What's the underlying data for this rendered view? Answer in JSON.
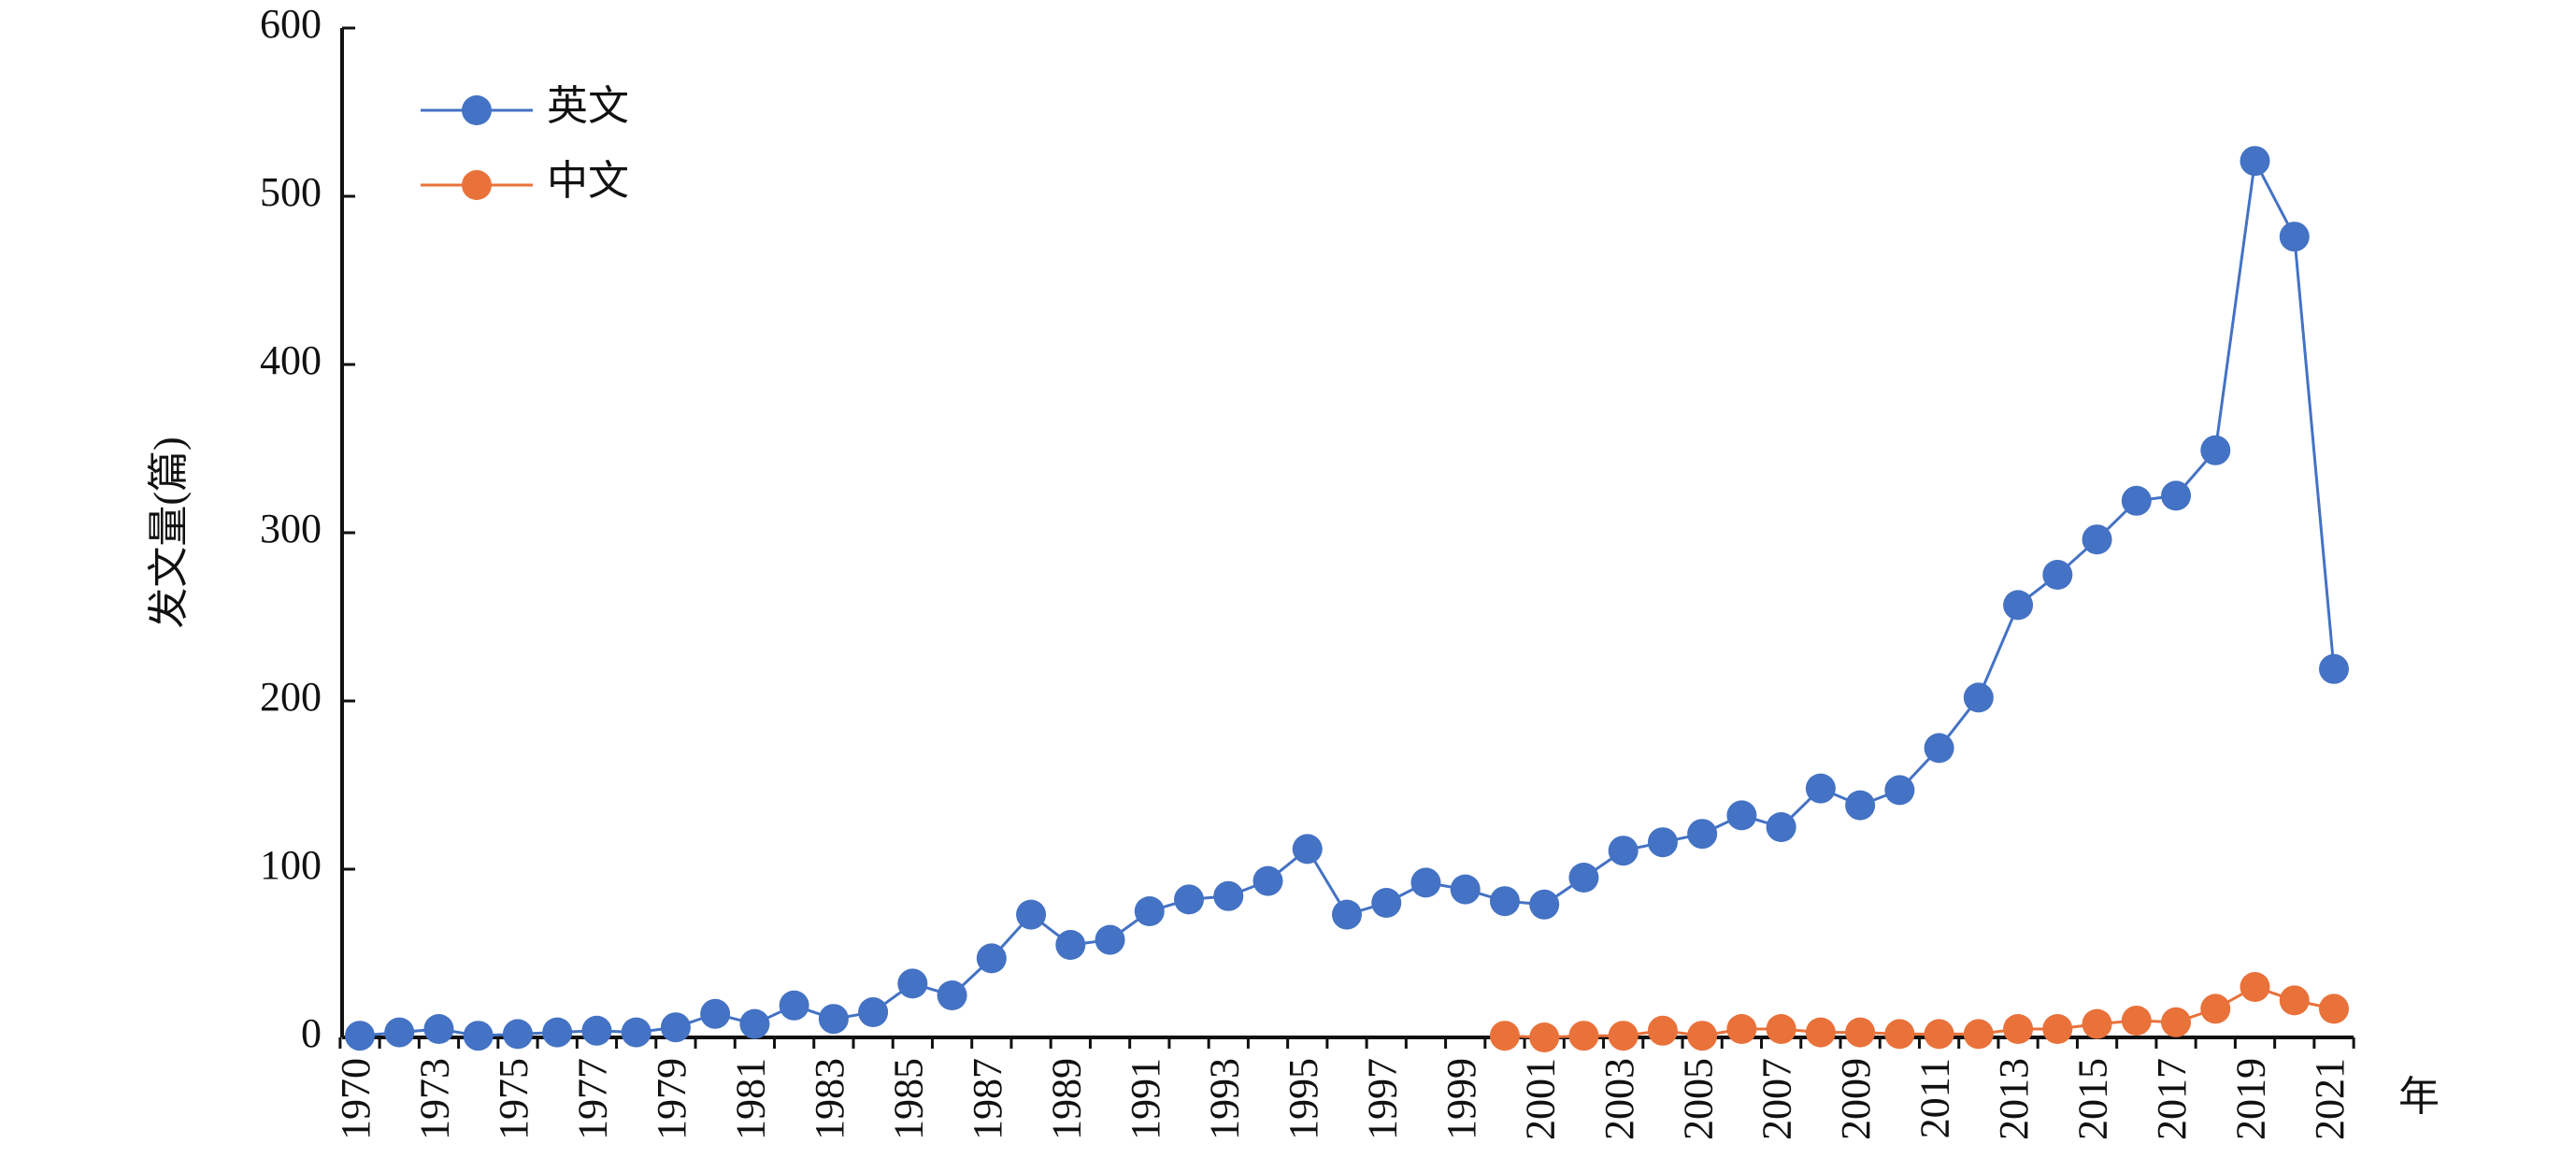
{
  "chart_data": {
    "type": "line",
    "y_label": "发文量(篇)",
    "x_label": "年",
    "categories": [
      "1970",
      null,
      "1973",
      null,
      "1975",
      null,
      "1977",
      null,
      "1979",
      null,
      "1981",
      null,
      "1983",
      null,
      "1985",
      null,
      "1987",
      null,
      "1989",
      null,
      "1991",
      null,
      "1993",
      null,
      "1995",
      null,
      "1997",
      null,
      "1999",
      null,
      "2001",
      null,
      "2003",
      null,
      "2005",
      null,
      "2007",
      null,
      "2009",
      null,
      "2011",
      null,
      "2013",
      null,
      "2015",
      null,
      "2017",
      null,
      "2019",
      null,
      "2021"
    ],
    "series": [
      {
        "name": "英文",
        "color": "#4472c4",
        "values": [
          1,
          3,
          5,
          1,
          2,
          3,
          4,
          3,
          6,
          14,
          8,
          19,
          11,
          15,
          32,
          25,
          47,
          73,
          55,
          58,
          75,
          82,
          84,
          93,
          112,
          73,
          80,
          92,
          88,
          81,
          79,
          95,
          111,
          116,
          121,
          132,
          125,
          148,
          138,
          147,
          172,
          202,
          257,
          275,
          296,
          319,
          322,
          349,
          521,
          476,
          219
        ]
      },
      {
        "name": "中文",
        "color": "#e9713a",
        "values": [
          null,
          null,
          null,
          null,
          null,
          null,
          null,
          null,
          null,
          null,
          null,
          null,
          null,
          null,
          null,
          null,
          null,
          null,
          null,
          null,
          null,
          null,
          null,
          null,
          null,
          null,
          null,
          null,
          null,
          1,
          0,
          1,
          1,
          4,
          1,
          5,
          5,
          3,
          3,
          2,
          2,
          2,
          5,
          5,
          8,
          10,
          9,
          17,
          30,
          22,
          17
        ]
      }
    ],
    "ylim": [
      0,
      600
    ],
    "yticks": [
      0,
      100,
      200,
      300,
      400,
      500,
      600
    ],
    "legend": "upper left"
  }
}
